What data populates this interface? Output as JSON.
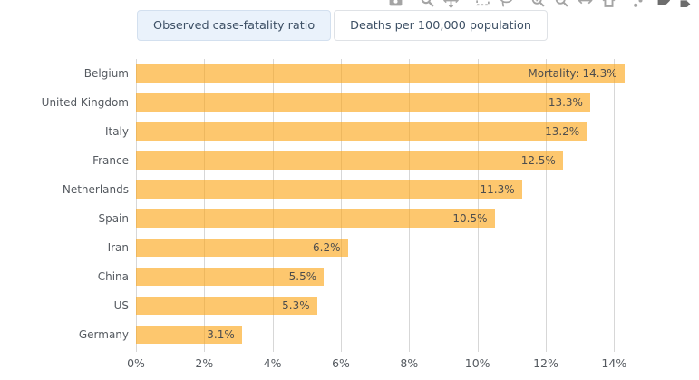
{
  "tabs": {
    "observed": {
      "label": "Observed case-fatality ratio",
      "selected": true
    },
    "deaths": {
      "label": "Deaths per 100,000 population",
      "selected": false
    }
  },
  "toolbar": {
    "icons": [
      "camera-icon",
      "zoom-icon",
      "pan-icon",
      "box-select-icon",
      "lasso-select-icon",
      "zoom-in-icon",
      "zoom-out-icon",
      "autoscale-icon",
      "reset-axes-icon",
      "toggle-spikelines-icon",
      "hover-closest-icon",
      "hover-compare-icon"
    ]
  },
  "chart_data": {
    "type": "bar",
    "orientation": "horizontal",
    "title": "",
    "categories": [
      "Belgium",
      "United Kingdom",
      "Italy",
      "France",
      "Netherlands",
      "Spain",
      "Iran",
      "China",
      "US",
      "Germany"
    ],
    "values": [
      14.3,
      13.3,
      13.2,
      12.5,
      11.3,
      10.5,
      6.2,
      5.5,
      5.3,
      3.1
    ],
    "bar_labels": [
      "Mortality: 14.3%",
      "13.3%",
      "13.2%",
      "12.5%",
      "11.3%",
      "10.5%",
      "6.2%",
      "5.5%",
      "5.3%",
      "3.1%"
    ],
    "x_ticks": [
      "0%",
      "2%",
      "4%",
      "6%",
      "8%",
      "10%",
      "12%",
      "14%"
    ],
    "x_tick_values": [
      0,
      2,
      4,
      6,
      8,
      10,
      12,
      14
    ],
    "xlim": [
      0,
      15
    ],
    "xlabel": "",
    "ylabel": "",
    "grid": true,
    "legend_position": "none",
    "bar_color": "#fca61a",
    "bar_opacity": 0.63,
    "grid_color": "#d7d7d7",
    "label_color": "#555a60"
  }
}
